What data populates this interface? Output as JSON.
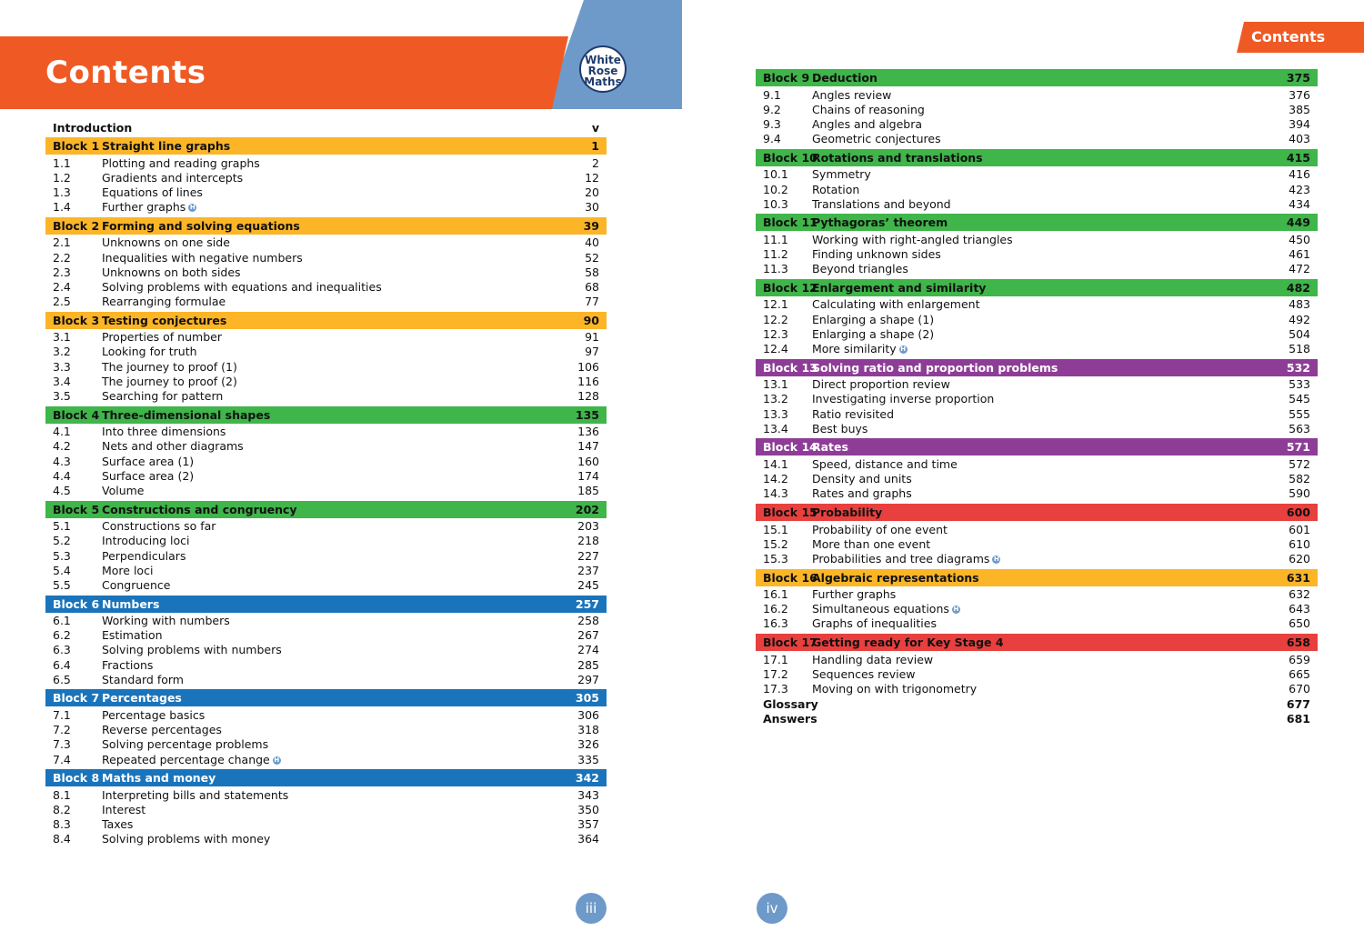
{
  "left_page": {
    "title": "Contents",
    "logo": [
      "White",
      "Rose",
      "Maths"
    ],
    "introduction": {
      "label": "Introduction",
      "page": "v"
    },
    "page_number": "iii",
    "blocks": [
      {
        "num": "Block 1",
        "name": "Straight line graphs",
        "page": "1",
        "color": "#fbb527",
        "text_color": "dark",
        "items": [
          {
            "num": "1.1",
            "name": "Plotting and reading graphs",
            "page": "2"
          },
          {
            "num": "1.2",
            "name": "Gradients and intercepts",
            "page": "12"
          },
          {
            "num": "1.3",
            "name": "Equations of lines",
            "page": "20"
          },
          {
            "num": "1.4",
            "name": "Further graphs",
            "page": "30",
            "higher": true
          }
        ]
      },
      {
        "num": "Block 2",
        "name": "Forming and solving equations",
        "page": "39",
        "color": "#fbb527",
        "text_color": "dark",
        "items": [
          {
            "num": "2.1",
            "name": "Unknowns on one side",
            "page": "40"
          },
          {
            "num": "2.2",
            "name": "Inequalities with negative numbers",
            "page": "52"
          },
          {
            "num": "2.3",
            "name": "Unknowns on both sides",
            "page": "58"
          },
          {
            "num": "2.4",
            "name": "Solving problems with equations and inequalities",
            "page": "68"
          },
          {
            "num": "2.5",
            "name": "Rearranging formulae",
            "page": "77"
          }
        ]
      },
      {
        "num": "Block 3",
        "name": "Testing conjectures",
        "page": "90",
        "color": "#fbb527",
        "text_color": "dark",
        "items": [
          {
            "num": "3.1",
            "name": "Properties of number",
            "page": "91"
          },
          {
            "num": "3.2",
            "name": "Looking for truth",
            "page": "97"
          },
          {
            "num": "3.3",
            "name": "The journey to proof (1)",
            "page": "106"
          },
          {
            "num": "3.4",
            "name": "The journey to proof (2)",
            "page": "116"
          },
          {
            "num": "3.5",
            "name": "Searching for pattern",
            "page": "128"
          }
        ]
      },
      {
        "num": "Block 4",
        "name": "Three-dimensional shapes",
        "page": "135",
        "color": "#3fb54a",
        "text_color": "dark",
        "items": [
          {
            "num": "4.1",
            "name": "Into three dimensions",
            "page": "136"
          },
          {
            "num": "4.2",
            "name": "Nets and other diagrams",
            "page": "147"
          },
          {
            "num": "4.3",
            "name": "Surface area (1)",
            "page": "160"
          },
          {
            "num": "4.4",
            "name": "Surface area (2)",
            "page": "174"
          },
          {
            "num": "4.5",
            "name": "Volume",
            "page": "185"
          }
        ]
      },
      {
        "num": "Block 5",
        "name": "Constructions and congruency",
        "page": "202",
        "color": "#3fb54a",
        "text_color": "dark",
        "items": [
          {
            "num": "5.1",
            "name": "Constructions so far",
            "page": "203"
          },
          {
            "num": "5.2",
            "name": "Introducing loci",
            "page": "218"
          },
          {
            "num": "5.3",
            "name": "Perpendiculars",
            "page": "227"
          },
          {
            "num": "5.4",
            "name": "More loci",
            "page": "237"
          },
          {
            "num": "5.5",
            "name": "Congruence",
            "page": "245"
          }
        ]
      },
      {
        "num": "Block 6",
        "name": "Numbers",
        "page": "257",
        "color": "#1a74bb",
        "text_color": "light",
        "items": [
          {
            "num": "6.1",
            "name": "Working with numbers",
            "page": "258"
          },
          {
            "num": "6.2",
            "name": "Estimation",
            "page": "267"
          },
          {
            "num": "6.3",
            "name": "Solving problems with numbers",
            "page": "274"
          },
          {
            "num": "6.4",
            "name": "Fractions",
            "page": "285"
          },
          {
            "num": "6.5",
            "name": "Standard form",
            "page": "297"
          }
        ]
      },
      {
        "num": "Block 7",
        "name": "Percentages",
        "page": "305",
        "color": "#1a74bb",
        "text_color": "light",
        "items": [
          {
            "num": "7.1",
            "name": "Percentage basics",
            "page": "306"
          },
          {
            "num": "7.2",
            "name": "Reverse percentages",
            "page": "318"
          },
          {
            "num": "7.3",
            "name": "Solving percentage problems",
            "page": "326"
          },
          {
            "num": "7.4",
            "name": "Repeated percentage change",
            "page": "335",
            "higher": true
          }
        ]
      },
      {
        "num": "Block 8",
        "name": "Maths and money",
        "page": "342",
        "color": "#1a74bb",
        "text_color": "light",
        "items": [
          {
            "num": "8.1",
            "name": "Interpreting bills and statements",
            "page": "343"
          },
          {
            "num": "8.2",
            "name": "Interest",
            "page": "350"
          },
          {
            "num": "8.3",
            "name": "Taxes",
            "page": "357"
          },
          {
            "num": "8.4",
            "name": "Solving problems with money",
            "page": "364"
          }
        ]
      }
    ]
  },
  "right_page": {
    "tab_label": "Contents",
    "page_number": "iv",
    "blocks": [
      {
        "num": "Block 9",
        "name": "Deduction",
        "page": "375",
        "color": "#3fb54a",
        "text_color": "dark",
        "items": [
          {
            "num": "9.1",
            "name": "Angles review",
            "page": "376"
          },
          {
            "num": "9.2",
            "name": "Chains of reasoning",
            "page": "385"
          },
          {
            "num": "9.3",
            "name": "Angles and algebra",
            "page": "394"
          },
          {
            "num": "9.4",
            "name": "Geometric conjectures",
            "page": "403"
          }
        ]
      },
      {
        "num": "Block 10",
        "name": "Rotations and translations",
        "page": "415",
        "color": "#3fb54a",
        "text_color": "dark",
        "items": [
          {
            "num": "10.1",
            "name": "Symmetry",
            "page": "416"
          },
          {
            "num": "10.2",
            "name": "Rotation",
            "page": "423"
          },
          {
            "num": "10.3",
            "name": "Translations and beyond",
            "page": "434"
          }
        ]
      },
      {
        "num": "Block 11",
        "name": "Pythagoras’ theorem",
        "page": "449",
        "color": "#3fb54a",
        "text_color": "dark",
        "items": [
          {
            "num": "11.1",
            "name": "Working with right-angled triangles",
            "page": "450"
          },
          {
            "num": "11.2",
            "name": "Finding unknown sides",
            "page": "461"
          },
          {
            "num": "11.3",
            "name": "Beyond triangles",
            "page": "472"
          }
        ]
      },
      {
        "num": "Block 12",
        "name": "Enlargement and similarity",
        "page": "482",
        "color": "#3fb54a",
        "text_color": "dark",
        "items": [
          {
            "num": "12.1",
            "name": "Calculating with enlargement",
            "page": "483"
          },
          {
            "num": "12.2",
            "name": "Enlarging a shape (1)",
            "page": "492"
          },
          {
            "num": "12.3",
            "name": "Enlarging a shape (2)",
            "page": "504"
          },
          {
            "num": "12.4",
            "name": "More similarity",
            "page": "518",
            "higher": true
          }
        ]
      },
      {
        "num": "Block 13",
        "name": "Solving ratio and proportion problems",
        "page": "532",
        "color": "#8e3d97",
        "text_color": "light",
        "items": [
          {
            "num": "13.1",
            "name": "Direct proportion review",
            "page": "533"
          },
          {
            "num": "13.2",
            "name": "Investigating inverse proportion",
            "page": "545"
          },
          {
            "num": "13.3",
            "name": "Ratio revisited",
            "page": "555"
          },
          {
            "num": "13.4",
            "name": "Best buys",
            "page": "563"
          }
        ]
      },
      {
        "num": "Block 14",
        "name": "Rates",
        "page": "571",
        "color": "#8e3d97",
        "text_color": "light",
        "items": [
          {
            "num": "14.1",
            "name": "Speed, distance and time",
            "page": "572"
          },
          {
            "num": "14.2",
            "name": "Density and units",
            "page": "582"
          },
          {
            "num": "14.3",
            "name": "Rates and graphs",
            "page": "590"
          }
        ]
      },
      {
        "num": "Block 15",
        "name": "Probability",
        "page": "600",
        "color": "#e8403e",
        "text_color": "dark",
        "items": [
          {
            "num": "15.1",
            "name": "Probability of one event",
            "page": "601"
          },
          {
            "num": "15.2",
            "name": "More than one event",
            "page": "610"
          },
          {
            "num": "15.3",
            "name": "Probabilities and tree diagrams",
            "page": "620",
            "higher": true
          }
        ]
      },
      {
        "num": "Block 16",
        "name": "Algebraic representations",
        "page": "631",
        "color": "#fbb527",
        "text_color": "dark",
        "items": [
          {
            "num": "16.1",
            "name": "Further graphs",
            "page": "632"
          },
          {
            "num": "16.2",
            "name": "Simultaneous equations",
            "page": "643",
            "higher": true
          },
          {
            "num": "16.3",
            "name": "Graphs of inequalities",
            "page": "650"
          }
        ]
      },
      {
        "num": "Block 17",
        "name": "Getting ready for Key Stage 4",
        "page": "658",
        "color": "#e8403e",
        "text_color": "dark",
        "items": [
          {
            "num": "17.1",
            "name": "Handling data review",
            "page": "659"
          },
          {
            "num": "17.2",
            "name": "Sequences review",
            "page": "665"
          },
          {
            "num": "17.3",
            "name": "Moving on with trigonometry",
            "page": "670"
          }
        ]
      }
    ],
    "extras": [
      {
        "name": "Glossary",
        "page": "677"
      },
      {
        "name": "Answers",
        "page": "681"
      }
    ]
  },
  "higher_badge": "H"
}
